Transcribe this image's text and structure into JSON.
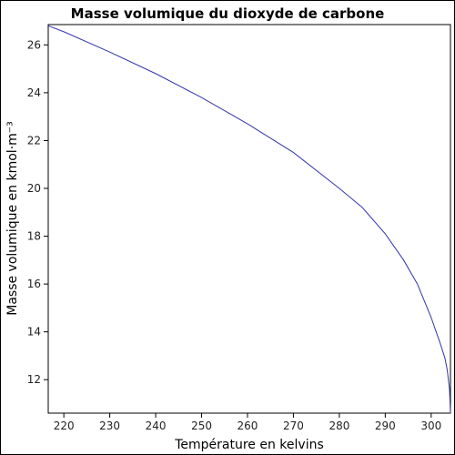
{
  "chart_data": {
    "type": "line",
    "title": "Masse volumique du dioxyde de carbone",
    "xlabel": "Température en kelvins",
    "ylabel": "Masse volumique en kmol·m⁻³",
    "xlim": [
      216.6,
      304.2
    ],
    "ylim": [
      10.6,
      26.85
    ],
    "xticks": [
      220,
      230,
      240,
      250,
      260,
      270,
      280,
      290,
      300
    ],
    "yticks": [
      12,
      14,
      16,
      18,
      20,
      22,
      24,
      26
    ],
    "grid": false,
    "series": [
      {
        "x": [
          216.6,
          220,
          230,
          240,
          250,
          260,
          270,
          280,
          285,
          290,
          294,
          297,
          300,
          302,
          303,
          303.5,
          304,
          304.2
        ],
        "y": [
          26.8,
          26.55,
          25.7,
          24.8,
          23.8,
          22.7,
          21.5,
          20.0,
          19.2,
          18.1,
          17.0,
          16.0,
          14.6,
          13.5,
          12.9,
          12.4,
          11.6,
          10.6
        ]
      }
    ],
    "line_color": "#3333aa"
  }
}
